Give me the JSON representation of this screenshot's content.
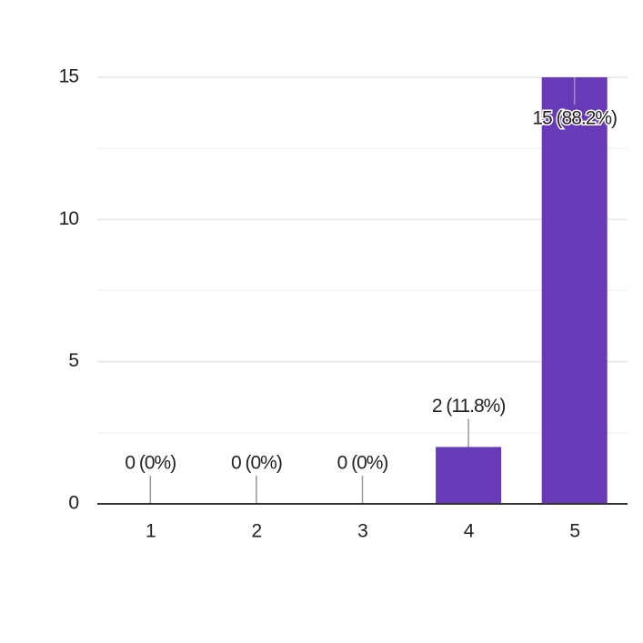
{
  "chart_data": {
    "type": "bar",
    "categories": [
      "1",
      "2",
      "3",
      "4",
      "5"
    ],
    "values": [
      0,
      0,
      0,
      2,
      15
    ],
    "value_labels": [
      "0 (0%)",
      "0 (0%)",
      "0 (0%)",
      "2 (11.8%)",
      "15 (88.2%)"
    ],
    "color": "#673ab7",
    "ylim": [
      0,
      15
    ],
    "yticks": [
      0,
      5,
      10,
      15
    ],
    "minor_yticks": [
      2.5,
      7.5,
      12.5
    ],
    "grid": true
  }
}
